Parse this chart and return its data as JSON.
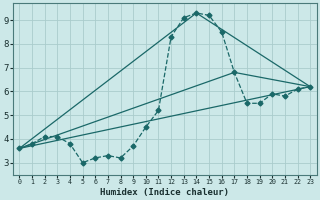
{
  "xlabel": "Humidex (Indice chaleur)",
  "bg_color": "#cce8e8",
  "grid_color": "#aacccc",
  "line_color": "#1a6868",
  "xlim": [
    -0.5,
    23.5
  ],
  "ylim": [
    2.5,
    9.7
  ],
  "xticks": [
    0,
    1,
    2,
    3,
    4,
    5,
    6,
    7,
    8,
    9,
    10,
    11,
    12,
    13,
    14,
    15,
    16,
    17,
    18,
    19,
    20,
    21,
    22,
    23
  ],
  "yticks": [
    3,
    4,
    5,
    6,
    7,
    8,
    9
  ],
  "main_series": {
    "x": [
      0,
      1,
      2,
      3,
      4,
      5,
      6,
      7,
      8,
      9,
      10,
      11,
      12,
      13,
      14,
      15,
      16,
      17,
      18,
      19,
      20,
      21,
      22,
      23
    ],
    "y": [
      3.6,
      3.8,
      4.1,
      4.1,
      3.8,
      3.0,
      3.2,
      3.3,
      3.2,
      3.7,
      4.5,
      5.2,
      8.3,
      9.1,
      9.3,
      9.2,
      8.5,
      6.8,
      5.5,
      5.5,
      5.9,
      5.8,
      6.1,
      6.2
    ]
  },
  "straight_lines": [
    {
      "x": [
        0,
        23
      ],
      "y": [
        3.6,
        6.2
      ]
    },
    {
      "x": [
        0,
        14,
        23
      ],
      "y": [
        3.6,
        9.3,
        6.2
      ]
    },
    {
      "x": [
        0,
        17,
        23
      ],
      "y": [
        3.6,
        6.8,
        6.2
      ]
    }
  ]
}
